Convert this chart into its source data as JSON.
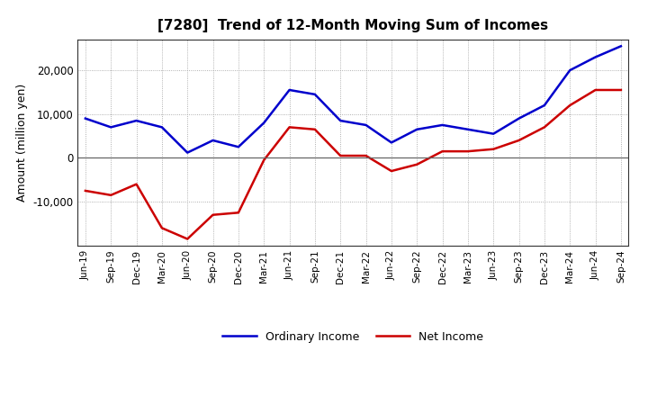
{
  "title": "[7280]  Trend of 12-Month Moving Sum of Incomes",
  "ylabel": "Amount (million yen)",
  "x_labels": [
    "Jun-19",
    "Sep-19",
    "Dec-19",
    "Mar-20",
    "Jun-20",
    "Sep-20",
    "Dec-20",
    "Mar-21",
    "Jun-21",
    "Sep-21",
    "Dec-21",
    "Mar-22",
    "Jun-22",
    "Sep-22",
    "Dec-22",
    "Mar-23",
    "Jun-23",
    "Sep-23",
    "Dec-23",
    "Mar-24",
    "Jun-24",
    "Sep-24"
  ],
  "ordinary_income": [
    9000,
    7000,
    8500,
    7000,
    1200,
    4000,
    2500,
    8000,
    15500,
    14500,
    8500,
    7500,
    3500,
    6500,
    7500,
    6500,
    5500,
    9000,
    12000,
    20000,
    23000,
    25500
  ],
  "net_income": [
    -7500,
    -8500,
    -6000,
    -16000,
    -18500,
    -13000,
    -12500,
    -500,
    7000,
    6500,
    500,
    500,
    -3000,
    -1500,
    1500,
    1500,
    2000,
    4000,
    7000,
    12000,
    15500,
    15500
  ],
  "ordinary_color": "#0000cc",
  "net_color": "#cc0000",
  "background_color": "#ffffff",
  "plot_bg_color": "#f8f8f8",
  "grid_color": "#999999",
  "ylim": [
    -20000,
    27000
  ],
  "yticks": [
    -10000,
    0,
    10000,
    20000
  ],
  "legend_labels": [
    "Ordinary Income",
    "Net Income"
  ]
}
